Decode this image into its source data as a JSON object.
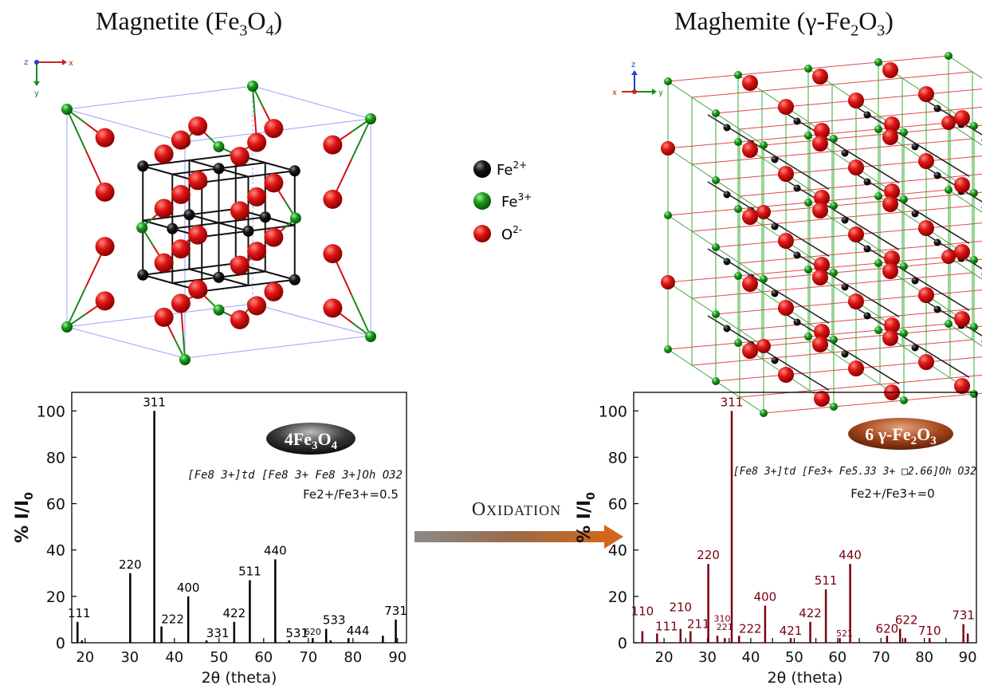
{
  "titles": {
    "magnetite": "Magnetite (Fe3O4)",
    "maghemite": "Maghemite (γ-Fe2O3)"
  },
  "legend": [
    {
      "label": "Fe2+",
      "color": "#111111"
    },
    {
      "label": "Fe3+",
      "color": "#1a8a1a"
    },
    {
      "label": "O2-",
      "color": "#d01010"
    }
  ],
  "arrow_label": "Oxidation",
  "axes_left": {
    "x": "x",
    "y": "y",
    "z": "z"
  },
  "axes_right": {
    "x": "x",
    "y": "y",
    "z": "z"
  },
  "chart_data": [
    {
      "type": "bar",
      "xlabel": "2θ (theta)",
      "ylabel": "% I/I0",
      "xlim": [
        17,
        92
      ],
      "ylim": [
        0,
        108
      ],
      "xticks": [
        20,
        30,
        40,
        50,
        60,
        70,
        80,
        90
      ],
      "yticks": [
        0,
        20,
        40,
        60,
        80,
        100
      ],
      "color": "#000000",
      "badge": "4Fe3O4",
      "formula": "[Fe8 3+]td [Fe8 3+ Fe8 3+]Oh O32",
      "ratio": "Fe2+/Fe3+=0.5",
      "peaks": [
        {
          "x": 18.3,
          "y": 9,
          "label": "111"
        },
        {
          "x": 19.3,
          "y": 1,
          "label": ""
        },
        {
          "x": 30.1,
          "y": 30,
          "label": "220"
        },
        {
          "x": 35.5,
          "y": 100,
          "label": "311"
        },
        {
          "x": 37.1,
          "y": 7,
          "label": "222"
        },
        {
          "x": 43.1,
          "y": 20,
          "label": "400"
        },
        {
          "x": 47.2,
          "y": 1,
          "label": "331"
        },
        {
          "x": 53.4,
          "y": 9,
          "label": "422"
        },
        {
          "x": 56.9,
          "y": 27,
          "label": "511"
        },
        {
          "x": 62.6,
          "y": 36,
          "label": "440"
        },
        {
          "x": 65.7,
          "y": 1,
          "label": "531"
        },
        {
          "x": 71,
          "y": 2,
          "label": "620"
        },
        {
          "x": 74,
          "y": 6,
          "label": "533"
        },
        {
          "x": 75,
          "y": 1,
          "label": ""
        },
        {
          "x": 79,
          "y": 2,
          "label": "444"
        },
        {
          "x": 86.7,
          "y": 3,
          "label": ""
        },
        {
          "x": 89.6,
          "y": 10,
          "label": "731"
        }
      ]
    },
    {
      "type": "bar",
      "xlabel": "2θ (theta)",
      "ylabel": "% I/I0",
      "xlim": [
        13,
        92
      ],
      "ylim": [
        0,
        108
      ],
      "xticks": [
        15,
        20,
        25,
        30,
        35,
        40,
        45,
        50,
        55,
        60,
        65,
        70,
        75,
        80,
        85,
        90
      ],
      "xticklabels": [
        "",
        "20",
        "",
        "30",
        "",
        "40",
        "",
        "50",
        "",
        "60",
        "",
        "70",
        "",
        "80",
        "",
        "90"
      ],
      "yticks": [
        0,
        20,
        40,
        60,
        80,
        100
      ],
      "color": "#7a0010",
      "badge": "6 γ-Fe2O3",
      "formula": "[Fe8 3+]td [Fe3+ Fe5.33 3+ □2.66]Oh O32",
      "ratio": "Fe2+/Fe3+=0",
      "peaks": [
        {
          "x": 15,
          "y": 5,
          "label": "110"
        },
        {
          "x": 18.4,
          "y": 4,
          "label": "111"
        },
        {
          "x": 23.8,
          "y": 6,
          "label": "210"
        },
        {
          "x": 26.1,
          "y": 5,
          "label": "211"
        },
        {
          "x": 30.2,
          "y": 34,
          "label": "220"
        },
        {
          "x": 32.3,
          "y": 3,
          "label": "310"
        },
        {
          "x": 34,
          "y": 2,
          "label": "221"
        },
        {
          "x": 35.6,
          "y": 100,
          "label": "311"
        },
        {
          "x": 37.3,
          "y": 3,
          "label": "222"
        },
        {
          "x": 43.3,
          "y": 16,
          "label": "400"
        },
        {
          "x": 49.2,
          "y": 2,
          "label": "421"
        },
        {
          "x": 53.7,
          "y": 9,
          "label": "422"
        },
        {
          "x": 57.3,
          "y": 23,
          "label": "511"
        },
        {
          "x": 60.5,
          "y": 2,
          "label": "521"
        },
        {
          "x": 62.9,
          "y": 34,
          "label": "440"
        },
        {
          "x": 71.4,
          "y": 3,
          "label": "620"
        },
        {
          "x": 74.4,
          "y": 6,
          "label": "622"
        },
        {
          "x": 75.6,
          "y": 2,
          "label": ""
        },
        {
          "x": 81.2,
          "y": 2,
          "label": "710"
        },
        {
          "x": 89,
          "y": 8,
          "label": "731"
        },
        {
          "x": 90,
          "y": 4,
          "label": ""
        }
      ]
    }
  ]
}
